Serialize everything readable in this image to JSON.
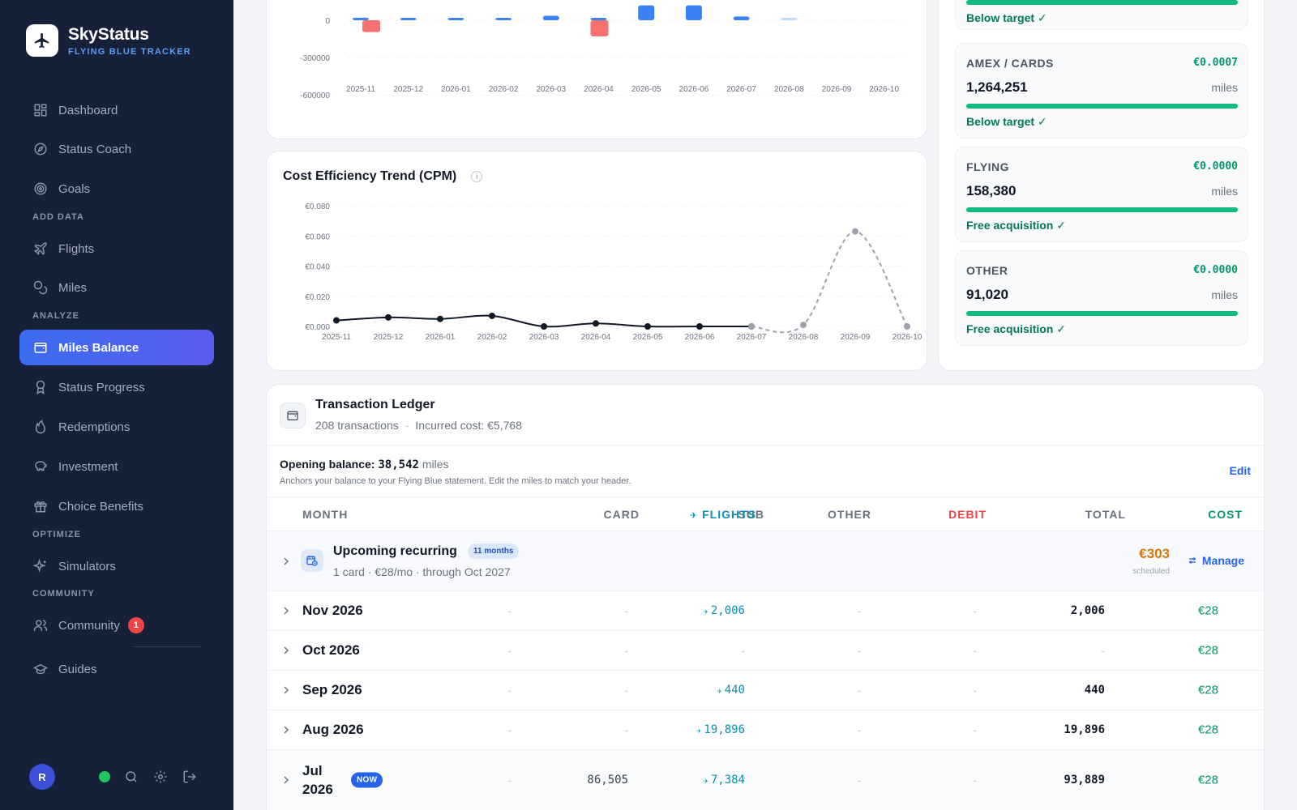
{
  "brand": {
    "name": "SkyStatus",
    "subtitle": "FLYING BLUE TRACKER"
  },
  "nav": {
    "items": [
      {
        "label": "Dashboard",
        "icon": "dashboard-icon"
      },
      {
        "label": "Status Coach",
        "icon": "compass-icon"
      },
      {
        "label": "Goals",
        "icon": "target-icon"
      },
      {
        "label": "Flights",
        "icon": "plane-icon"
      },
      {
        "label": "Miles",
        "icon": "coins-icon"
      },
      {
        "label": "Miles Balance",
        "icon": "wallet-icon",
        "active": true
      },
      {
        "label": "Status Progress",
        "icon": "award-icon"
      },
      {
        "label": "Redemptions",
        "icon": "flame-icon"
      },
      {
        "label": "Investment",
        "icon": "piggy-bank-icon"
      },
      {
        "label": "Choice Benefits",
        "icon": "gift-icon"
      },
      {
        "label": "Simulators",
        "icon": "sparkles-icon"
      },
      {
        "label": "Community",
        "icon": "users-icon",
        "badge": "1"
      },
      {
        "label": "Guides",
        "icon": "graduation-cap-icon"
      }
    ],
    "sections": {
      "add_data": "ADD DATA",
      "analyze": "ANALYZE",
      "optimize": "OPTIMIZE",
      "community": "COMMUNITY"
    }
  },
  "user": {
    "initial": "R"
  },
  "colors": {
    "sidebar": "#162038",
    "accent": "#3b6cf0",
    "positive": "#059669",
    "negative": "#f87171",
    "bar": "#3b82f6"
  },
  "chart_data": [
    {
      "type": "bar",
      "categories": [
        "2025-11",
        "2025-12",
        "2026-01",
        "2026-02",
        "2026-03",
        "2026-04",
        "2026-05",
        "2026-06",
        "2026-07",
        "2026-08",
        "2026-09",
        "2026-10"
      ],
      "series": [
        {
          "values": [
            20000,
            13000,
            18000,
            11000,
            36000,
            9000,
            120000,
            120000,
            30000,
            3000,
            0,
            0
          ]
        },
        {
          "values": [
            -95000,
            0,
            0,
            0,
            0,
            -130000,
            0,
            0,
            0,
            0,
            0,
            0
          ]
        }
      ],
      "y_ticks": [
        "0",
        "-300000",
        "-600000"
      ],
      "ylim": [
        -600000,
        0
      ]
    },
    {
      "type": "line",
      "title": "Cost Efficiency Trend (CPM)",
      "categories": [
        "2025-11",
        "2025-12",
        "2026-01",
        "2026-02",
        "2026-03",
        "2026-04",
        "2026-05",
        "2026-06",
        "2026-07",
        "2026-08",
        "2026-09",
        "2026-10"
      ],
      "series": [
        {
          "style": "solid",
          "values": [
            0.004,
            0.006,
            0.005,
            0.007,
            0.0,
            0.002,
            0.0,
            0.0,
            0.0,
            null,
            null,
            null
          ]
        },
        {
          "style": "dashed",
          "values": [
            null,
            null,
            null,
            null,
            null,
            null,
            null,
            null,
            0.0,
            0.001,
            0.063,
            0.0
          ]
        }
      ],
      "y_ticks": [
        "€0.080",
        "€0.060",
        "€0.040",
        "€0.020",
        "€0.000"
      ],
      "ylim": [
        0,
        0.08
      ]
    }
  ],
  "sources": [
    {
      "name": "",
      "cpm": "",
      "miles": "",
      "unit": "",
      "note": "Below target ✓"
    },
    {
      "name": "AMEX / CARDS",
      "cpm": "€0.0007",
      "miles": "1,264,251",
      "unit": "miles",
      "note": "Below target ✓"
    },
    {
      "name": "FLYING",
      "cpm": "€0.0000",
      "miles": "158,380",
      "unit": "miles",
      "note": "Free acquisition ✓"
    },
    {
      "name": "OTHER",
      "cpm": "€0.0000",
      "miles": "91,020",
      "unit": "miles",
      "note": "Free acquisition ✓"
    }
  ],
  "ledger": {
    "title": "Transaction Ledger",
    "count": "208 transactions",
    "sep": "-",
    "incurred": "Incurred cost: €5,768",
    "opening_label": "Opening balance:",
    "opening_value": "38,542",
    "opening_unit": "miles",
    "opening_note": "Anchors your balance to your Flying Blue statement. Edit the miles to match your header.",
    "edit": "Edit",
    "headers": [
      "MONTH",
      "SUB",
      "CARD",
      "FLIGHTS",
      "OTHER",
      "DEBIT",
      "TOTAL",
      "COST"
    ],
    "upcoming": {
      "title": "Upcoming recurring",
      "badge": "11 months",
      "sub": "1 card · €28/mo · through Oct 2027",
      "amount": "€303",
      "scheduled": "scheduled",
      "manage": "Manage"
    },
    "rows": [
      {
        "month": "Nov 2026",
        "sub": "-",
        "card": "-",
        "flights": "2,006",
        "other": "-",
        "debit": "-",
        "total": "2,006",
        "cost": "€28"
      },
      {
        "month": "Oct 2026",
        "sub": "-",
        "card": "-",
        "flights": "-",
        "other": "-",
        "debit": "-",
        "total": "-",
        "cost": "€28"
      },
      {
        "month": "Sep 2026",
        "sub": "-",
        "card": "-",
        "flights": "440",
        "other": "-",
        "debit": "-",
        "total": "440",
        "cost": "€28"
      },
      {
        "month": "Aug 2026",
        "sub": "-",
        "card": "-",
        "flights": "19,896",
        "other": "-",
        "debit": "-",
        "total": "19,896",
        "cost": "€28"
      },
      {
        "month": "Jul 2026",
        "month_line1": "Jul",
        "month_line2": "2026",
        "now": "NOW",
        "sub": "-",
        "card": "86,505",
        "flights": "7,384",
        "other": "-",
        "debit": "-",
        "total": "93,889",
        "cost": "€28"
      }
    ]
  }
}
